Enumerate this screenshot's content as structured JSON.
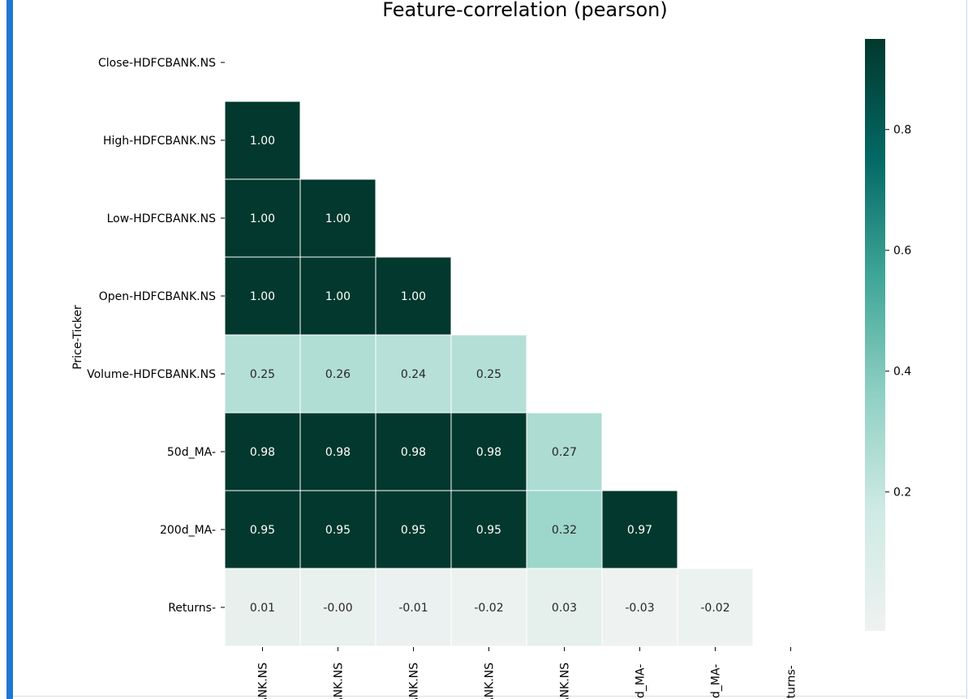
{
  "chart_data": {
    "type": "heatmap",
    "title": "Feature-correlation (pearson)",
    "ylabel": "Price-Ticker",
    "xlabel": "",
    "row_labels": [
      "Close-HDFCBANK.NS",
      "High-HDFCBANK.NS",
      "Low-HDFCBANK.NS",
      "Open-HDFCBANK.NS",
      "Volume-HDFCBANK.NS",
      "50d_MA-",
      "200d_MA-",
      "Returns-"
    ],
    "col_tick_labels_visible": [
      "ANK.NS",
      "ANK.NS",
      "ANK.NS",
      "ANK.NS",
      "ANK.NS",
      "0d_MA-",
      "0d_MA-",
      "eturns-"
    ],
    "mask": "upper triangle including diagonal",
    "matrix": [
      [
        null,
        null,
        null,
        null,
        null,
        null,
        null,
        null
      ],
      [
        1.0,
        null,
        null,
        null,
        null,
        null,
        null,
        null
      ],
      [
        1.0,
        1.0,
        null,
        null,
        null,
        null,
        null,
        null
      ],
      [
        1.0,
        1.0,
        1.0,
        null,
        null,
        null,
        null,
        null
      ],
      [
        0.25,
        0.26,
        0.24,
        0.25,
        null,
        null,
        null,
        null
      ],
      [
        0.98,
        0.98,
        0.98,
        0.98,
        0.27,
        null,
        null,
        null
      ],
      [
        0.95,
        0.95,
        0.95,
        0.95,
        0.32,
        0.97,
        null,
        null
      ],
      [
        0.01,
        -0.0,
        -0.01,
        -0.02,
        0.03,
        -0.03,
        -0.02,
        null
      ]
    ],
    "annotations": [
      [
        null,
        null,
        null,
        null,
        null,
        null,
        null,
        null
      ],
      [
        "1.00",
        null,
        null,
        null,
        null,
        null,
        null,
        null
      ],
      [
        "1.00",
        "1.00",
        null,
        null,
        null,
        null,
        null,
        null
      ],
      [
        "1.00",
        "1.00",
        "1.00",
        null,
        null,
        null,
        null,
        null
      ],
      [
        "0.25",
        "0.26",
        "0.24",
        "0.25",
        null,
        null,
        null,
        null
      ],
      [
        "0.98",
        "0.98",
        "0.98",
        "0.98",
        "0.27",
        null,
        null,
        null
      ],
      [
        "0.95",
        "0.95",
        "0.95",
        "0.95",
        "0.32",
        "0.97",
        null,
        null
      ],
      [
        "0.01",
        "-0.00",
        "-0.01",
        "-0.02",
        "0.03",
        "-0.03",
        "-0.02",
        null
      ]
    ],
    "colorbar": {
      "vmin": -0.03,
      "vmax": 0.95,
      "ticks": [
        0.2,
        0.4,
        0.6,
        0.8
      ],
      "tick_labels": [
        "0.2",
        "0.4",
        "0.6",
        "0.8"
      ],
      "colors": [
        "#eef2f1",
        "#b8e3da",
        "#5cb8a8",
        "#036864",
        "#02382d"
      ]
    },
    "grid": false,
    "legend": "colorbar right"
  }
}
